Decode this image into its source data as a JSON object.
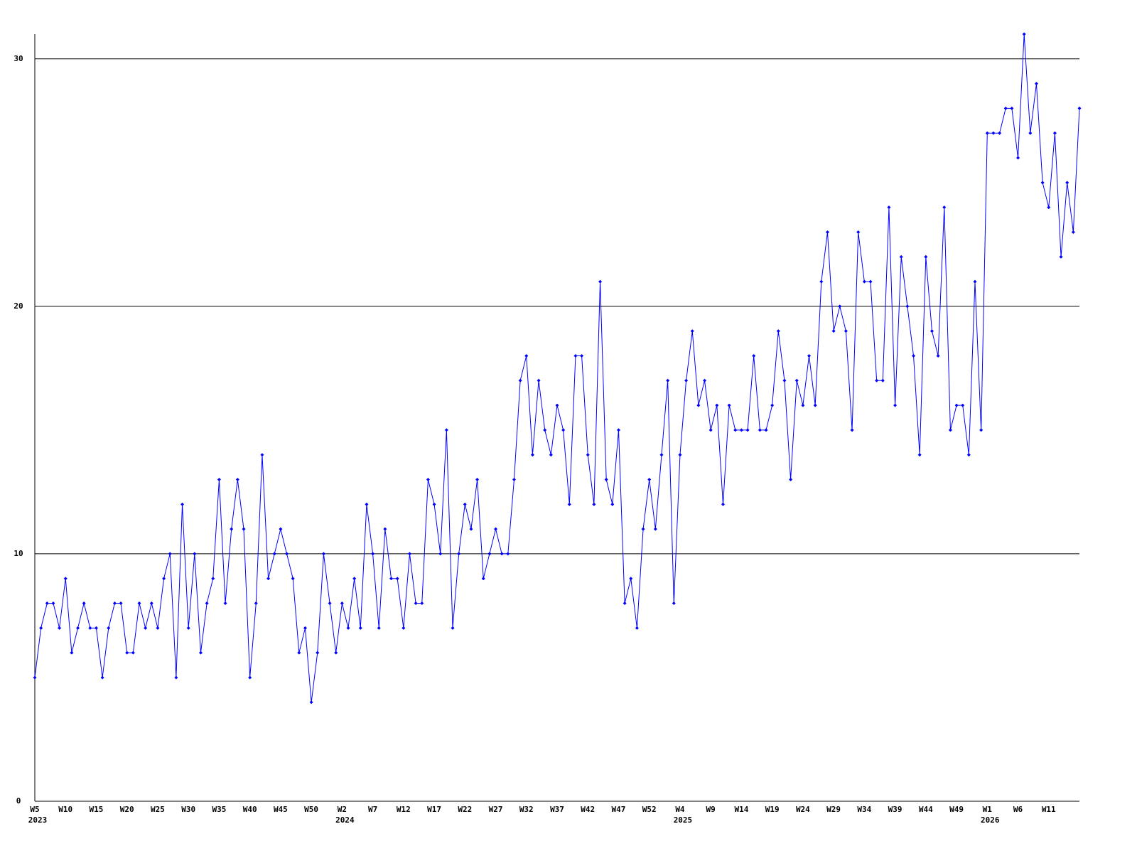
{
  "chart_data": {
    "type": "line",
    "categories": [
      "W5",
      null,
      null,
      null,
      null,
      "W10",
      null,
      null,
      null,
      null,
      "W15",
      null,
      null,
      null,
      null,
      "W20",
      null,
      null,
      null,
      null,
      "W25",
      null,
      null,
      null,
      null,
      "W30",
      null,
      null,
      null,
      null,
      "W35",
      null,
      null,
      null,
      null,
      "W40",
      null,
      null,
      null,
      null,
      "W45",
      null,
      null,
      null,
      null,
      "W50",
      null,
      null,
      null,
      null,
      "W2",
      null,
      null,
      null,
      null,
      "W7",
      null,
      null,
      null,
      null,
      "W12",
      null,
      null,
      null,
      null,
      "W17",
      null,
      null,
      null,
      null,
      "W22",
      null,
      null,
      null,
      null,
      "W27",
      null,
      null,
      null,
      null,
      "W32",
      null,
      null,
      null,
      null,
      "W37",
      null,
      null,
      null,
      null,
      "W42",
      null,
      null,
      null,
      null,
      "W47",
      null,
      null,
      null,
      null,
      "W52",
      null,
      null,
      null,
      null,
      "W4",
      null,
      null,
      null,
      null,
      "W9",
      null,
      null,
      null,
      null,
      "W14",
      null,
      null,
      null,
      null,
      "W19",
      null,
      null,
      null,
      null,
      "W24",
      null,
      null,
      null,
      null,
      "W29",
      null,
      null,
      null,
      null,
      "W34",
      null,
      null,
      null,
      null,
      "W39",
      null,
      null,
      null,
      null,
      "W44",
      null,
      null,
      null,
      null,
      "W49",
      null,
      null,
      null,
      null,
      "W1",
      null,
      null,
      null,
      null,
      "W6",
      null,
      null,
      null,
      null,
      "W11",
      null,
      null,
      null,
      null,
      null
    ],
    "category_years": [
      "2023",
      null,
      null,
      null,
      null,
      null,
      null,
      null,
      null,
      null,
      null,
      null,
      null,
      null,
      null,
      null,
      null,
      null,
      null,
      null,
      null,
      null,
      null,
      null,
      null,
      null,
      null,
      null,
      null,
      null,
      null,
      null,
      null,
      null,
      null,
      null,
      null,
      null,
      null,
      null,
      null,
      null,
      null,
      null,
      null,
      null,
      null,
      null,
      null,
      null,
      "2024",
      null,
      null,
      null,
      null,
      null,
      null,
      null,
      null,
      null,
      null,
      null,
      null,
      null,
      null,
      null,
      null,
      null,
      null,
      null,
      null,
      null,
      null,
      null,
      null,
      null,
      null,
      null,
      null,
      null,
      null,
      null,
      null,
      null,
      null,
      null,
      null,
      null,
      null,
      null,
      null,
      null,
      null,
      null,
      null,
      null,
      null,
      null,
      null,
      null,
      null,
      null,
      null,
      null,
      null,
      "2025",
      null,
      null,
      null,
      null,
      null,
      null,
      null,
      null,
      null,
      null,
      null,
      null,
      null,
      null,
      null,
      null,
      null,
      null,
      null,
      null,
      null,
      null,
      null,
      null,
      null,
      null,
      null,
      null,
      null,
      null,
      null,
      null,
      null,
      null,
      null,
      null,
      null,
      null,
      null,
      null,
      null,
      null,
      null,
      null,
      null,
      null,
      null,
      null,
      null,
      "2026",
      null,
      null,
      null,
      null,
      null,
      null,
      null,
      null,
      null,
      null,
      null,
      null,
      null,
      null,
      null
    ],
    "series": [
      {
        "color": "#0000ff",
        "values": [
          5,
          7,
          8,
          8,
          7,
          9,
          6,
          7,
          8,
          7,
          7,
          5,
          7,
          8,
          8,
          6,
          6,
          8,
          7,
          8,
          7,
          9,
          10,
          5,
          12,
          7,
          10,
          6,
          8,
          9,
          13,
          8,
          11,
          13,
          11,
          5,
          8,
          14,
          9,
          10,
          11,
          10,
          9,
          6,
          7,
          4,
          6,
          10,
          8,
          6,
          8,
          7,
          9,
          7,
          12,
          10,
          7,
          11,
          9,
          9,
          7,
          10,
          8,
          8,
          13,
          12,
          10,
          15,
          7,
          10,
          12,
          11,
          13,
          9,
          10,
          11,
          10,
          10,
          13,
          17,
          18,
          14,
          17,
          15,
          14,
          16,
          15,
          12,
          18,
          18,
          14,
          12,
          21,
          13,
          12,
          15,
          8,
          9,
          7,
          11,
          13,
          11,
          14,
          17,
          8,
          14,
          17,
          19,
          16,
          17,
          15,
          16,
          12,
          16,
          15,
          15,
          15,
          18,
          15,
          15,
          16,
          19,
          17,
          13,
          17,
          16,
          18,
          16,
          21,
          23,
          19,
          20,
          19,
          15,
          23,
          21,
          21,
          17,
          17,
          24,
          16,
          22,
          20,
          18,
          14,
          22,
          19,
          18,
          24,
          15,
          16,
          16,
          14,
          21,
          15,
          27,
          27,
          27,
          28,
          28,
          26,
          31,
          27,
          29,
          25,
          24,
          27,
          22,
          25,
          23,
          28
        ]
      }
    ],
    "ylim": [
      0,
      31
    ],
    "yticks": [
      0,
      10,
      20,
      30
    ],
    "grid": true,
    "grid_color": "#000000",
    "axis_color": "#000000"
  }
}
